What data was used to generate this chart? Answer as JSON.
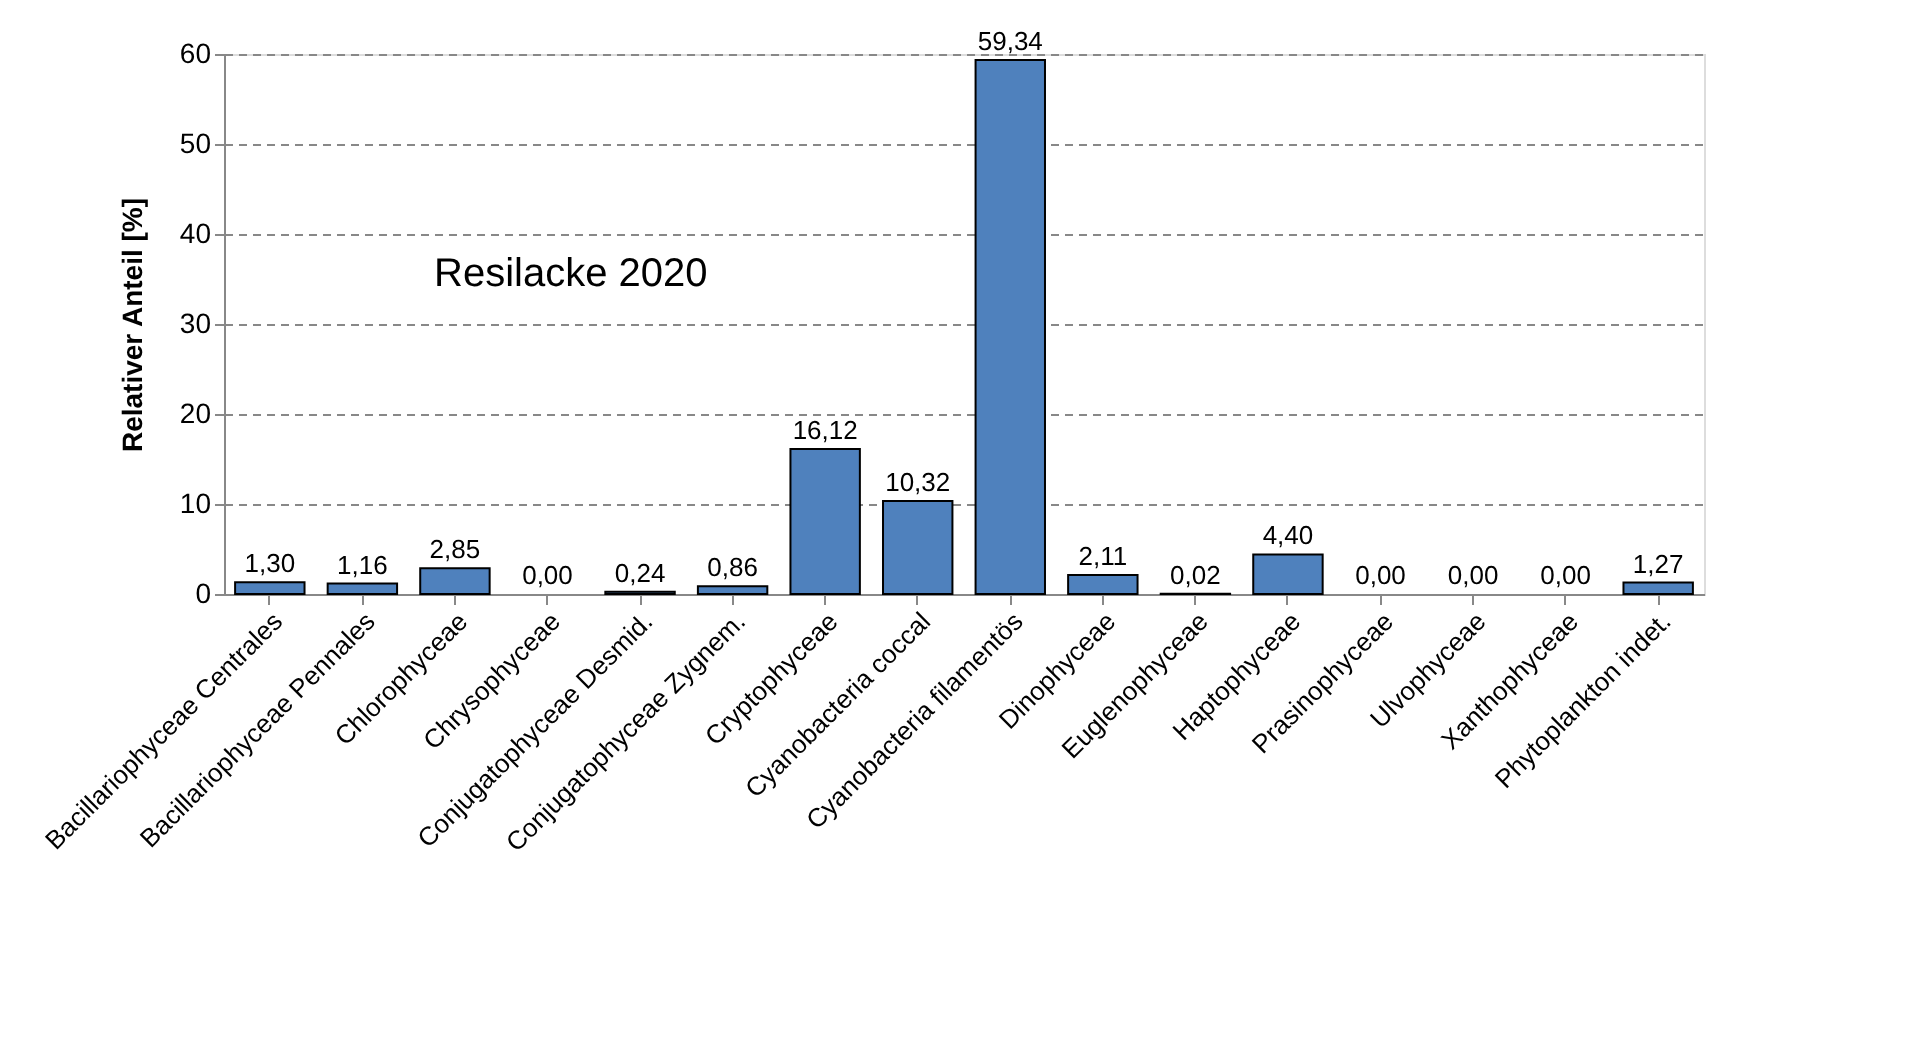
{
  "chart_data": {
    "type": "bar",
    "ylabel": "Relativer Anteil [%]",
    "annotations": [
      "Resilacke 2020"
    ],
    "categories": [
      "Bacillariophyceae Centrales",
      "Bacillariophyceae Pennales",
      "Chlorophyceae",
      "Chrysophyceae",
      "Conjugatophyceae Desmid.",
      "Conjugatophyceae Zygnem.",
      "Cryptophyceae",
      "Cyanobacteria coccal",
      "Cyanobacteria filamentös",
      "Dinophyceae",
      "Euglenophyceae",
      "Haptophyceae",
      "Prasinophyceae",
      "Ulvophyceae",
      "Xanthophyceae",
      "Phytoplankton indet."
    ],
    "values": [
      1.3,
      1.16,
      2.85,
      0.0,
      0.24,
      0.86,
      16.12,
      10.32,
      59.34,
      2.11,
      0.02,
      4.4,
      0.0,
      0.0,
      0.0,
      1.27
    ],
    "value_labels": [
      "1,30",
      "1,16",
      "2,85",
      "0,00",
      "0,24",
      "0,86",
      "16,12",
      "10,32",
      "59,34",
      "2,11",
      "0,02",
      "4,40",
      "0,00",
      "0,00",
      "0,00",
      "1,27"
    ],
    "color": "#4f81bd",
    "ylim": [
      0,
      60
    ],
    "yticks": [
      0,
      10,
      20,
      30,
      40,
      50,
      60
    ],
    "grid": "y"
  }
}
